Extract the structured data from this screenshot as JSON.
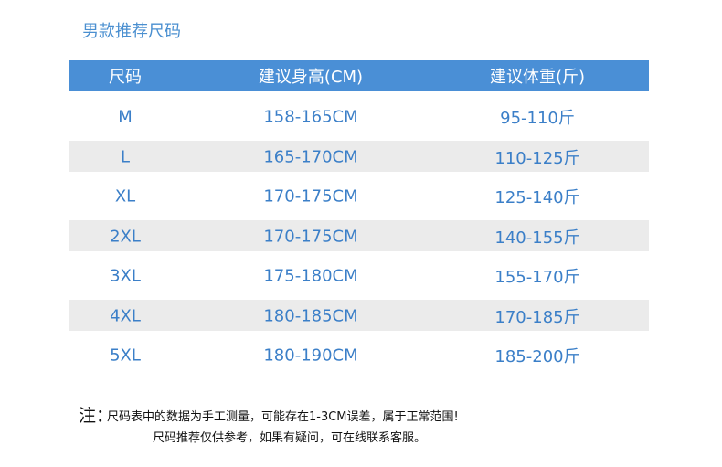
{
  "header": {
    "title": "男款推荐尺码"
  },
  "table": {
    "columns": [
      "尺码",
      "建议身高(CM)",
      "建议体重(斤)"
    ],
    "rows": [
      [
        "M",
        "158-165CM",
        "95-110斤"
      ],
      [
        "L",
        "165-170CM",
        "110-125斤"
      ],
      [
        "XL",
        "170-175CM",
        "125-140斤"
      ],
      [
        "2XL",
        "170-175CM",
        "140-155斤"
      ],
      [
        "3XL",
        "175-180CM",
        "155-170斤"
      ],
      [
        "4XL",
        "180-185CM",
        "170-185斤"
      ],
      [
        "5XL",
        "180-190CM",
        "185-200斤"
      ]
    ]
  },
  "note": {
    "label": "注：",
    "lines": [
      "尺码表中的数据为手工测量，可能存在1-3CM误差，属于正常范围!",
      "尺码推荐仅供参考，如果有疑问，可在线联系客服。"
    ]
  }
}
